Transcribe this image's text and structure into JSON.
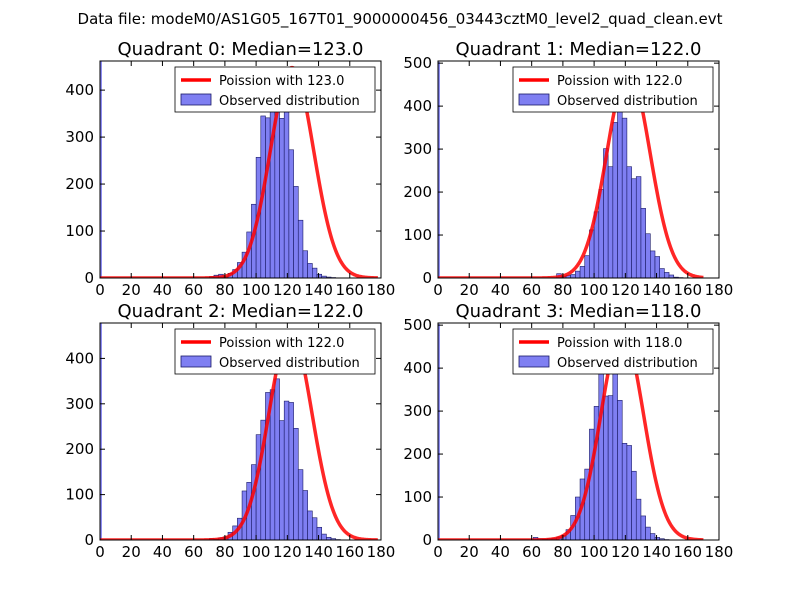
{
  "figure_title": "Data file: modeM0/AS1G05_167T01_9000000456_03443cztM0_level2_quad_clean.evt",
  "colors": {
    "bar_fill": "#7f7ff2",
    "bar_edge": "#1a1a66",
    "curve": "#ff0000",
    "spike": "#7f7ff2"
  },
  "chart_data": [
    {
      "type": "bar",
      "title": "Quadrant 0: Median=123.0",
      "median": 123.0,
      "x_ticks": [
        0,
        20,
        40,
        60,
        80,
        100,
        120,
        140,
        160,
        180
      ],
      "y_ticks": [
        0,
        100,
        200,
        300,
        400
      ],
      "xlim": [
        0,
        180
      ],
      "ylim": [
        0,
        462
      ],
      "legend": [
        "Poission with 123.0",
        "Observed distribution"
      ],
      "zero_bin_count": 462,
      "bins_start": 70,
      "bin_width": 3,
      "counts": [
        3,
        6,
        8,
        3,
        10,
        18,
        33,
        55,
        98,
        157,
        257,
        345,
        341,
        402,
        437,
        340,
        355,
        273,
        195,
        123,
        58,
        31,
        21,
        8,
        4,
        2,
        1,
        0,
        0,
        0
      ],
      "poisson_mean": 123.0,
      "poisson_peak": 448,
      "curve_x_range": [
        0,
        178
      ]
    },
    {
      "type": "bar",
      "title": "Quadrant 1: Median=122.0",
      "median": 122.0,
      "x_ticks": [
        0,
        20,
        40,
        60,
        80,
        100,
        120,
        140,
        160,
        180
      ],
      "y_ticks": [
        0,
        100,
        200,
        300,
        400,
        500
      ],
      "xlim": [
        0,
        180
      ],
      "ylim": [
        0,
        505
      ],
      "legend": [
        "Poission with 122.0",
        "Observed distribution"
      ],
      "zero_bin_count": 503,
      "bins_start": 76,
      "bin_width": 3,
      "counts": [
        10,
        4,
        6,
        8,
        16,
        27,
        52,
        112,
        154,
        206,
        301,
        259,
        362,
        400,
        372,
        259,
        231,
        236,
        162,
        103,
        63,
        50,
        22,
        13,
        7,
        2,
        1
      ],
      "poisson_mean": 122.0,
      "poisson_peak": 482,
      "curve_x_range": [
        0,
        170
      ]
    },
    {
      "type": "bar",
      "title": "Quadrant 2: Median=122.0",
      "median": 122.0,
      "x_ticks": [
        0,
        20,
        40,
        60,
        80,
        100,
        120,
        140,
        160,
        180
      ],
      "y_ticks": [
        0,
        100,
        200,
        300,
        400
      ],
      "xlim": [
        0,
        180
      ],
      "ylim": [
        0,
        478
      ],
      "legend": [
        "Poission with 122.0",
        "Observed distribution"
      ],
      "zero_bin_count": 478,
      "bins_start": 70,
      "bin_width": 3,
      "counts": [
        3,
        2,
        5,
        7,
        17,
        31,
        48,
        108,
        127,
        166,
        232,
        264,
        325,
        331,
        355,
        263,
        306,
        303,
        246,
        155,
        109,
        64,
        49,
        28,
        13,
        6,
        3,
        1,
        0,
        0
      ],
      "poisson_mean": 122.0,
      "poisson_peak": 460,
      "curve_x_range": [
        0,
        178
      ]
    },
    {
      "type": "bar",
      "title": "Quadrant 3: Median=118.0",
      "median": 118.0,
      "x_ticks": [
        0,
        20,
        40,
        60,
        80,
        100,
        120,
        140,
        160,
        180
      ],
      "y_ticks": [
        0,
        100,
        200,
        300,
        400,
        500
      ],
      "xlim": [
        0,
        180
      ],
      "ylim": [
        0,
        505
      ],
      "legend": [
        "Poission with 118.0",
        "Observed distribution"
      ],
      "zero_bin_count": 503,
      "bins_start": 61,
      "bin_width": 3,
      "counts": [
        6,
        3,
        2,
        3,
        4,
        7,
        11,
        24,
        57,
        100,
        142,
        165,
        258,
        311,
        406,
        335,
        336,
        415,
        325,
        225,
        220,
        160,
        95,
        56,
        30,
        15,
        6,
        3,
        1
      ],
      "poisson_mean": 118.0,
      "poisson_peak": 485,
      "curve_x_range": [
        0,
        170
      ]
    }
  ]
}
